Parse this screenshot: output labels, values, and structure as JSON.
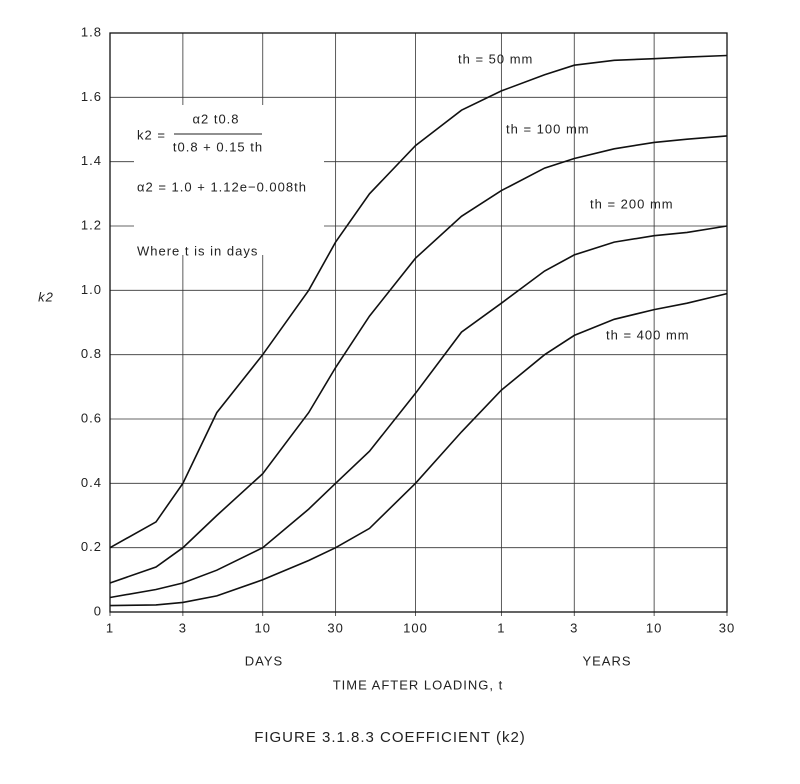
{
  "chart_data": {
    "type": "line",
    "title": "FIGURE 3.1.8.3 COEFFICIENT (k2)",
    "x_label": "TIME AFTER LOADING, t",
    "y_label": "k2",
    "x_group_labels": [
      "DAYS",
      "YEARS"
    ],
    "annotations": [
      "k2 =",
      "α2 t0.8",
      "t0.8 + 0.15 th",
      "α2 = 1.0 + 1.12e−0.008th",
      "Where t is in days"
    ],
    "x_scale": "log",
    "grid": true,
    "x": [
      1,
      2,
      3,
      5,
      10,
      20,
      30,
      50,
      100,
      200,
      365,
      700,
      1095,
      2000,
      3650,
      6000,
      10950
    ],
    "series": [
      {
        "name": "th = 50 mm",
        "color": "#111111",
        "values": [
          0.2,
          0.28,
          0.4,
          0.62,
          0.8,
          1.0,
          1.15,
          1.3,
          1.45,
          1.56,
          1.62,
          1.67,
          1.7,
          1.715,
          1.72,
          1.725,
          1.73
        ]
      },
      {
        "name": "th = 100 mm",
        "color": "#111111",
        "values": [
          0.09,
          0.14,
          0.2,
          0.3,
          0.43,
          0.62,
          0.76,
          0.92,
          1.1,
          1.23,
          1.31,
          1.38,
          1.41,
          1.44,
          1.46,
          1.47,
          1.48
        ]
      },
      {
        "name": "th = 200 mm",
        "color": "#111111",
        "values": [
          0.045,
          0.07,
          0.09,
          0.13,
          0.2,
          0.32,
          0.4,
          0.5,
          0.68,
          0.87,
          0.96,
          1.06,
          1.11,
          1.15,
          1.17,
          1.18,
          1.2
        ]
      },
      {
        "name": "th = 400 mm",
        "color": "#111111",
        "values": [
          0.02,
          0.022,
          0.03,
          0.05,
          0.1,
          0.16,
          0.2,
          0.26,
          0.4,
          0.56,
          0.69,
          0.8,
          0.86,
          0.91,
          0.94,
          0.96,
          0.99
        ]
      }
    ],
    "xlim": [
      1,
      10950
    ],
    "xticks": [
      1,
      3,
      10,
      30,
      100,
      {
        "value": 365,
        "label": "1"
      },
      {
        "value": 1095,
        "label": "3"
      },
      {
        "value": 3650,
        "label": "10"
      },
      {
        "value": 10950,
        "label": "30"
      }
    ],
    "ylim": [
      0,
      1.8
    ],
    "yticks": [
      0,
      0.2,
      0.4,
      0.6,
      0.8,
      {
        "value": 1.0,
        "label": "1.0"
      },
      1.2,
      1.4,
      1.6,
      1.8
    ]
  }
}
